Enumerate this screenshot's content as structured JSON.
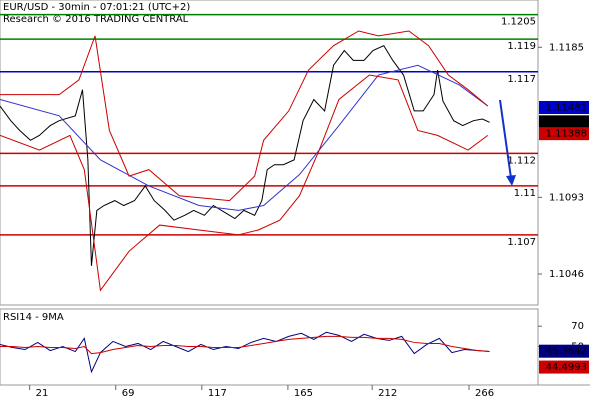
{
  "chart_data": [
    {
      "type": "line",
      "title": "EUR/USD - 30min - 07:01:21 (UTC+2)",
      "subtitle": "Research © 2016 TRADING CENTRAL",
      "xlim": [
        0,
        300
      ],
      "xticks": [
        21,
        69,
        117,
        165,
        212,
        266
      ],
      "ylim": [
        1.1027,
        1.1214
      ],
      "yticks": [
        1.1046,
        1.1093,
        1.1185
      ],
      "series": [
        {
          "color": "#000000",
          "x": [
            0,
            6,
            11,
            17,
            22,
            28,
            33,
            42,
            46,
            49,
            51,
            54,
            58,
            64,
            69,
            75,
            81,
            86,
            92,
            97,
            103,
            108,
            114,
            119,
            125,
            131,
            136,
            142,
            146,
            149,
            153,
            158,
            164,
            169,
            175,
            181,
            186,
            192,
            197,
            203,
            208,
            214,
            219,
            225,
            231,
            236,
            242,
            244,
            247,
            253,
            258,
            264,
            269,
            273
          ],
          "values": [
            1.1149,
            1.114,
            1.1134,
            1.1128,
            1.1131,
            1.1137,
            1.114,
            1.1143,
            1.1159,
            1.1116,
            1.1051,
            1.1085,
            1.1088,
            1.1091,
            1.1088,
            1.1091,
            1.11,
            1.1091,
            1.1085,
            1.1079,
            1.1082,
            1.1085,
            1.1082,
            1.1088,
            1.1084,
            1.108,
            1.1085,
            1.1082,
            1.1091,
            1.111,
            1.1113,
            1.1113,
            1.1116,
            1.114,
            1.1153,
            1.1146,
            1.1174,
            1.1183,
            1.1177,
            1.1177,
            1.1183,
            1.1186,
            1.1177,
            1.1168,
            1.1146,
            1.1146,
            1.1156,
            1.1171,
            1.1152,
            1.114,
            1.1137,
            1.114,
            1.1141,
            1.1139
          ]
        },
        {
          "color": "#3333cc",
          "x": [
            0,
            33,
            56,
            83,
            111,
            133,
            147,
            167,
            189,
            211,
            233,
            256,
            272
          ],
          "values": [
            1.1153,
            1.1143,
            1.1116,
            1.11,
            1.1088,
            1.1085,
            1.1088,
            1.1107,
            1.1137,
            1.1168,
            1.1174,
            1.1162,
            1.1149
          ]
        },
        {
          "color": "#cc0000",
          "x": [
            0,
            33,
            44,
            53,
            61,
            72,
            83,
            100,
            128,
            142,
            147,
            161,
            172,
            186,
            200,
            211,
            228,
            239,
            250,
            261,
            272
          ],
          "values": [
            1.1156,
            1.1156,
            1.1165,
            1.1192,
            1.1134,
            1.1106,
            1.111,
            1.1094,
            1.1091,
            1.1106,
            1.1128,
            1.1146,
            1.1171,
            1.1186,
            1.1195,
            1.1192,
            1.1195,
            1.1186,
            1.1168,
            1.1159,
            1.1149
          ]
        },
        {
          "color": "#cc0000",
          "x": [
            0,
            22,
            39,
            47,
            56,
            72,
            89,
            111,
            133,
            144,
            156,
            167,
            178,
            189,
            206,
            222,
            233,
            244,
            261,
            272
          ],
          "values": [
            1.1131,
            1.1122,
            1.1131,
            1.111,
            1.1036,
            1.106,
            1.1076,
            1.1073,
            1.107,
            1.1073,
            1.1079,
            1.1094,
            1.1122,
            1.1153,
            1.1168,
            1.1165,
            1.1134,
            1.1131,
            1.1122,
            1.1131
          ]
        }
      ],
      "levels": [
        {
          "value": 1.1205,
          "color": "#008000"
        },
        {
          "value": 1.119,
          "color": "#008000"
        },
        {
          "value": 1.117,
          "color": "#0000cc"
        },
        {
          "value": 1.112,
          "color": "#cc0000"
        },
        {
          "value": 1.11,
          "color": "#cc0000"
        },
        {
          "value": 1.107,
          "color": "#cc0000"
        }
      ],
      "price_tags": [
        {
          "value": 1.11481,
          "color": "#0000cc"
        },
        {
          "value": 1.11393,
          "color": "#000000"
        },
        {
          "value": 1.11388,
          "color": "#cc0000"
        }
      ]
    },
    {
      "type": "line",
      "title": "RSI14 - 9MA",
      "xlim": [
        0,
        300
      ],
      "ylim": [
        12,
        87
      ],
      "yticks": [
        50,
        70
      ],
      "series": [
        {
          "color": "#000080",
          "x": [
            0,
            7,
            14,
            21,
            28,
            35,
            42,
            47,
            51,
            56,
            63,
            70,
            77,
            84,
            91,
            98,
            105,
            112,
            119,
            126,
            133,
            140,
            147,
            154,
            161,
            168,
            175,
            182,
            189,
            196,
            203,
            210,
            217,
            224,
            231,
            238,
            245,
            252,
            259,
            266,
            273
          ],
          "values": [
            52,
            49,
            47,
            54,
            46,
            50,
            45,
            58,
            25,
            44,
            55,
            50,
            53,
            47,
            55,
            50,
            45,
            52,
            47,
            50,
            48,
            54,
            58,
            55,
            60,
            63,
            57,
            64,
            61,
            55,
            62,
            58,
            56,
            60,
            43,
            52,
            58,
            44,
            47,
            46,
            45
          ]
        },
        {
          "color": "#cc0000",
          "x": [
            0,
            7,
            14,
            21,
            28,
            35,
            42,
            47,
            51,
            56,
            63,
            70,
            77,
            84,
            91,
            98,
            105,
            112,
            119,
            126,
            133,
            140,
            147,
            154,
            161,
            168,
            175,
            182,
            189,
            196,
            203,
            210,
            217,
            224,
            231,
            238,
            245,
            252,
            259,
            266,
            273
          ],
          "values": [
            50,
            50,
            49,
            50,
            49,
            49,
            48,
            50,
            43,
            44,
            47,
            49,
            51,
            50,
            51,
            51,
            50,
            50,
            49,
            49,
            49,
            51,
            53,
            55,
            57,
            58,
            59,
            60,
            60,
            59,
            59,
            58,
            58,
            57,
            54,
            53,
            53,
            50,
            48,
            46,
            45
          ]
        }
      ],
      "price_tags": [
        {
          "value": 45.3642,
          "color": "#000080"
        },
        {
          "value": 44.4993,
          "color": "#cc0000"
        }
      ]
    }
  ]
}
